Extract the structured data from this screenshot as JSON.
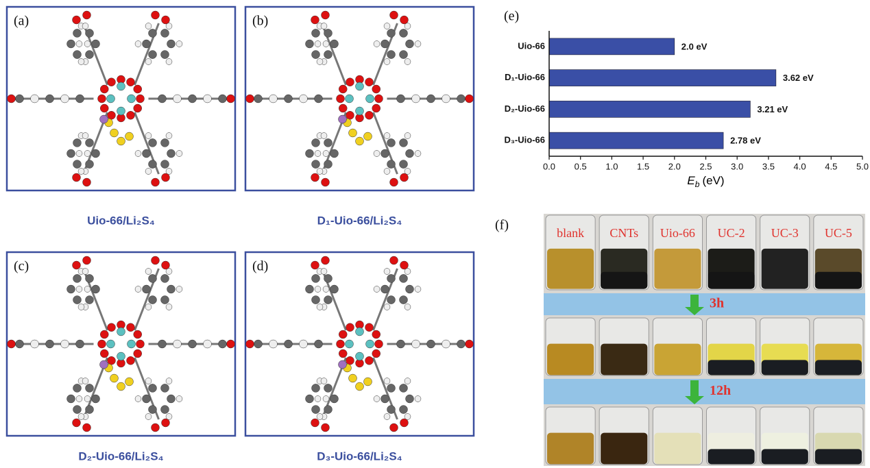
{
  "panels": [
    {
      "label": "(a)",
      "caption": "Uio-66/Li₂S₄"
    },
    {
      "label": "(b)",
      "caption": "D₁-Uio-66/Li₂S₄"
    },
    {
      "label": "(c)",
      "caption": "D₂-Uio-66/Li₂S₄"
    },
    {
      "label": "(d)",
      "caption": "D₃-Uio-66/Li₂S₄"
    }
  ],
  "chart_data": {
    "type": "barh",
    "label": "(e)",
    "categories": [
      "Uio-66",
      "D₁-Uio-66",
      "D₂-Uio-66",
      "D₃-Uio-66"
    ],
    "values": [
      2.0,
      3.62,
      3.21,
      2.78
    ],
    "value_labels": [
      "2.0 eV",
      "3.62 eV",
      "3.21 eV",
      "2.78 eV"
    ],
    "color": "#3a4fa6",
    "xlabel": {
      "symbol": "E",
      "subscript": "b",
      "unit": "(eV)"
    },
    "xlim": [
      0,
      5
    ],
    "xticks": [
      {
        "value": 0,
        "label": "0.0"
      },
      0.5,
      {
        "value": 1,
        "label": "1.0"
      },
      1.5,
      {
        "value": 2,
        "label": "2.0"
      },
      2.5,
      {
        "value": 3,
        "label": "3.0"
      },
      3.5,
      {
        "value": 4,
        "label": "4.0"
      },
      4.5,
      {
        "value": 5,
        "label": "5.0"
      }
    ]
  },
  "photo": {
    "label": "(f)",
    "samples": [
      "blank",
      "CNTs",
      "Uio-66",
      "UC-2",
      "UC-3",
      "UC-5"
    ],
    "times": [
      "3h",
      "12h"
    ]
  }
}
